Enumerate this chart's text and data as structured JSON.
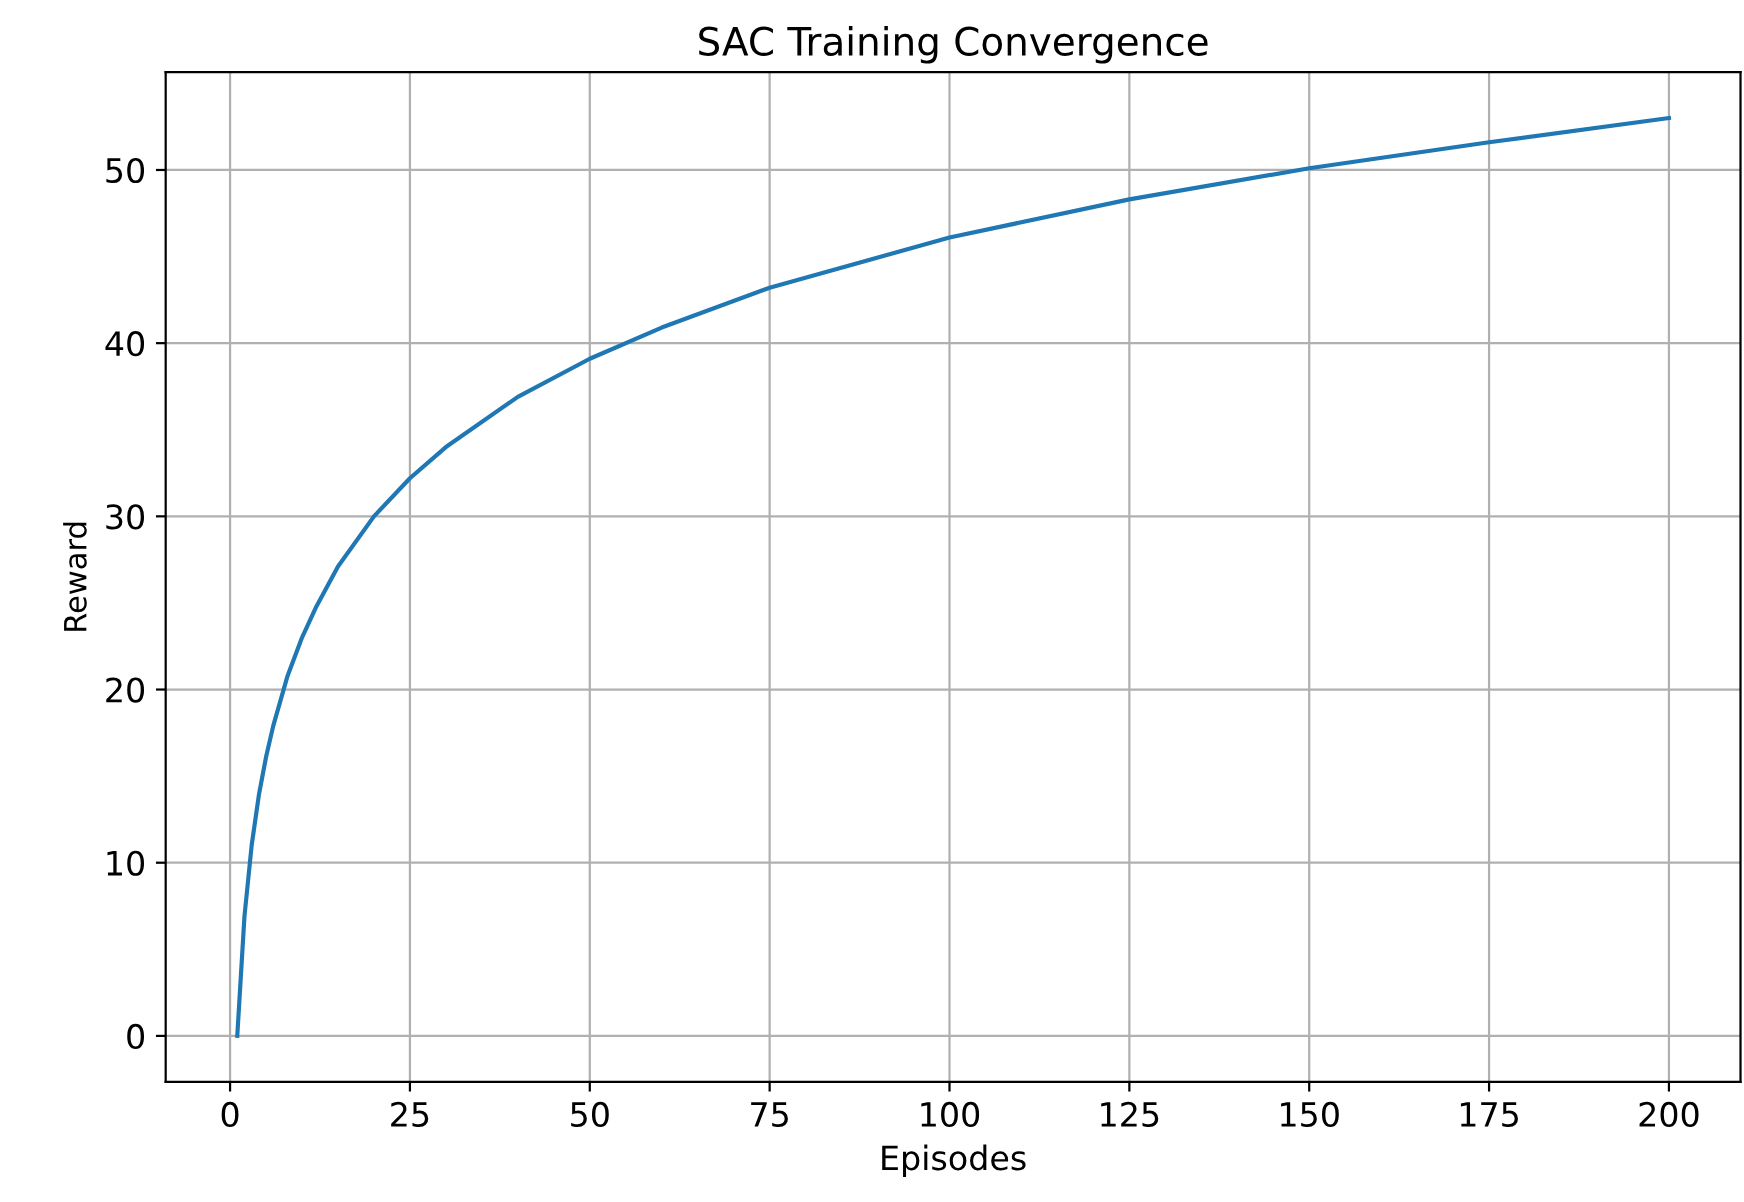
{
  "chart_data": {
    "type": "line",
    "title": "SAC Training Convergence",
    "xlabel": "Episodes",
    "ylabel": "Reward",
    "x": [
      1,
      2,
      3,
      4,
      5,
      6,
      8,
      10,
      12,
      15,
      20,
      25,
      30,
      40,
      50,
      60,
      75,
      100,
      125,
      150,
      175,
      200
    ],
    "series": [
      {
        "color": "#1f77b4",
        "values": [
          0,
          6.9,
          11.0,
          13.9,
          16.1,
          17.9,
          20.8,
          23.0,
          24.8,
          27.1,
          30.0,
          32.2,
          34.0,
          36.9,
          39.1,
          40.9,
          43.2,
          46.1,
          48.3,
          50.1,
          51.6,
          53.0
        ]
      }
    ],
    "xlim": [
      -8.95,
      209.95
    ],
    "ylim": [
      -2.65,
      55.65
    ],
    "xticks": [
      0,
      25,
      50,
      75,
      100,
      125,
      150,
      175,
      200
    ],
    "yticks": [
      0,
      10,
      20,
      30,
      40,
      50
    ],
    "grid": true,
    "line_style": "solid",
    "marker": "none"
  }
}
